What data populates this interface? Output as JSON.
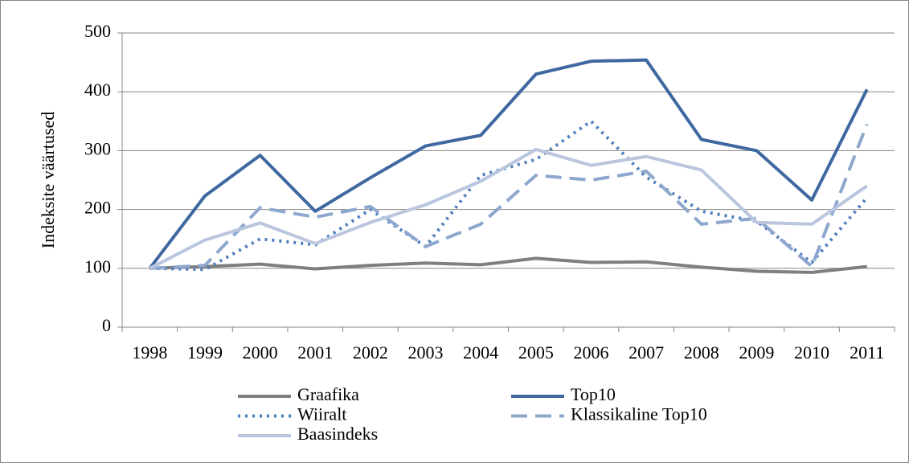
{
  "chart_data": {
    "type": "line",
    "y_label": "Indeksite väärtused",
    "categories": [
      "1998",
      "1999",
      "2000",
      "2001",
      "2002",
      "2003",
      "2004",
      "2005",
      "2006",
      "2007",
      "2008",
      "2009",
      "2010",
      "2011"
    ],
    "series": [
      {
        "name": "Graafika",
        "color": "#7f7f7f",
        "style": "solid",
        "values": [
          100,
          103,
          107,
          99,
          105,
          109,
          106,
          117,
          110,
          111,
          102,
          95,
          93,
          103
        ]
      },
      {
        "name": "Top10",
        "color": "#3f68a0",
        "style": "solid",
        "values": [
          100,
          223,
          292,
          197,
          254,
          308,
          326,
          430,
          452,
          454,
          319,
          300,
          216,
          404
        ]
      },
      {
        "name": "Wiiralt",
        "color": "#4f7fbd",
        "style": "dotted",
        "values": [
          100,
          98,
          150,
          140,
          200,
          137,
          258,
          285,
          350,
          255,
          197,
          180,
          110,
          220
        ]
      },
      {
        "name": "Klassikaline Top10",
        "color": "#8da7cf",
        "style": "dashed",
        "values": [
          100,
          105,
          203,
          187,
          205,
          137,
          175,
          258,
          250,
          265,
          175,
          185,
          103,
          345
        ]
      },
      {
        "name": "Baasindeks",
        "color": "#b9c6de",
        "style": "solid",
        "values": [
          100,
          148,
          177,
          142,
          178,
          208,
          248,
          302,
          275,
          290,
          267,
          178,
          175,
          240
        ]
      }
    ],
    "ylim": [
      0,
      500
    ],
    "yticks": [
      0,
      100,
      200,
      300,
      400,
      500
    ],
    "grid": true
  }
}
